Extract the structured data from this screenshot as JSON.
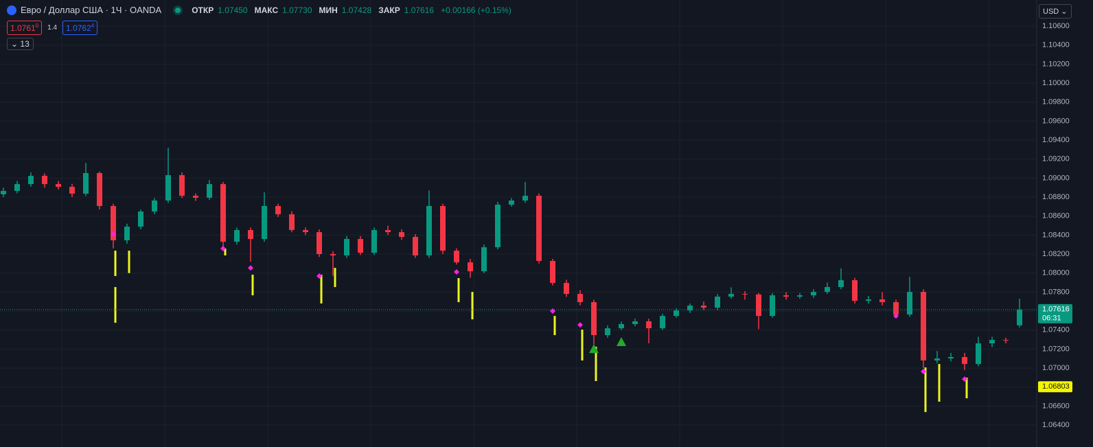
{
  "header": {
    "symbol": "Евро / Доллар США · 1Ч · OANDA",
    "open_label": "ОТКР",
    "open": "1.07450",
    "high_label": "МАКС",
    "high": "1.07730",
    "low_label": "МИН",
    "low": "1.07428",
    "close_label": "ЗАКР",
    "close": "1.07616",
    "change": "+0.00166 (+0.15%)",
    "sell": "1.0761",
    "sell_sup": "0",
    "spread": "1.4",
    "buy": "1.0762",
    "buy_sup": "4",
    "indicators": "13",
    "currency": "USD"
  },
  "chart_data": {
    "type": "candlestick",
    "open": [
      1.0883,
      1.08865,
      1.08937,
      1.09024,
      1.08937,
      1.08908,
      1.08836,
      1.09053,
      1.08706,
      1.08345,
      1.08489,
      1.08648,
      1.08764,
      1.09031,
      1.08814,
      1.08793,
      1.08937,
      1.0833,
      1.08453,
      1.08359,
      1.08706,
      1.08619,
      1.08453,
      1.08431,
      1.082,
      1.08186,
      1.08359,
      1.08214,
      1.08453,
      1.08431,
      1.08381,
      1.08186,
      1.08706,
      1.08236,
      1.08113,
      1.08019,
      1.08272,
      1.0872,
      1.08764,
      1.08814,
      1.08128,
      1.07896,
      1.07781,
      1.07694,
      1.07347,
      1.07419,
      1.07463,
      1.07492,
      1.07419,
      1.07549,
      1.07607,
      1.07658,
      1.07636,
      1.07752,
      1.07781,
      1.07775,
      1.07549,
      1.07766,
      1.07752,
      1.07766,
      1.07802,
      1.07853,
      1.07925,
      1.07708,
      1.07723,
      1.07694,
      1.07564,
      1.07802,
      1.0708,
      1.07101,
      1.07116,
      1.07043,
      1.0726,
      1.07296,
      1.0745
    ],
    "high": [
      1.089,
      1.0897,
      1.0906,
      1.0905,
      1.0897,
      1.0894,
      1.0916,
      1.0907,
      1.0873,
      1.0852,
      1.0867,
      1.0879,
      1.0932,
      1.0906,
      1.0884,
      1.0898,
      1.0896,
      1.0848,
      1.0848,
      1.0885,
      1.0873,
      1.0865,
      1.0848,
      1.0846,
      1.0823,
      1.0839,
      1.0839,
      1.0848,
      1.085,
      1.0846,
      1.0841,
      1.0887,
      1.0873,
      1.0826,
      1.0815,
      1.083,
      1.0875,
      1.0879,
      1.0896,
      1.0884,
      1.0815,
      1.0793,
      1.0782,
      1.0772,
      1.0745,
      1.0749,
      1.0752,
      1.0752,
      1.0757,
      1.0763,
      1.0768,
      1.077,
      1.0778,
      1.0785,
      1.0781,
      1.0779,
      1.0779,
      1.078,
      1.0779,
      1.0783,
      1.079,
      1.0805,
      1.0795,
      1.0776,
      1.078,
      1.0772,
      1.0796,
      1.0783,
      1.0718,
      1.0716,
      1.0716,
      1.0733,
      1.0733,
      1.0732,
      1.0773
    ],
    "low": [
      1.088,
      1.0884,
      1.0891,
      1.089,
      1.0888,
      1.088,
      1.0881,
      1.0867,
      1.0826,
      1.0831,
      1.0846,
      1.0862,
      1.0874,
      1.0879,
      1.0876,
      1.0877,
      1.0828,
      1.083,
      1.0812,
      1.0833,
      1.0859,
      1.0843,
      1.084,
      1.0817,
      1.0797,
      1.0816,
      1.0819,
      1.0819,
      1.084,
      1.0835,
      1.0816,
      1.0816,
      1.082,
      1.0809,
      1.0795,
      1.08,
      1.0825,
      1.087,
      1.0874,
      1.081,
      1.0787,
      1.0775,
      1.0766,
      1.0725,
      1.0732,
      1.074,
      1.0744,
      1.0726,
      1.074,
      1.0753,
      1.0758,
      1.0761,
      1.0761,
      1.0773,
      1.0772,
      1.0741,
      1.0753,
      1.0772,
      1.0773,
      1.0774,
      1.0778,
      1.0783,
      1.0768,
      1.0768,
      1.0766,
      1.0754,
      1.0754,
      1.07,
      1.0705,
      1.0707,
      1.0698,
      1.0702,
      1.0722,
      1.0726,
      1.07428
    ],
    "close": [
      1.08865,
      1.08937,
      1.09024,
      1.08937,
      1.08908,
      1.08836,
      1.09053,
      1.08706,
      1.08345,
      1.08489,
      1.08648,
      1.08764,
      1.09031,
      1.08814,
      1.08793,
      1.08937,
      1.0833,
      1.08453,
      1.08359,
      1.08706,
      1.08619,
      1.08453,
      1.08431,
      1.082,
      1.08186,
      1.08359,
      1.08214,
      1.08453,
      1.08431,
      1.08381,
      1.08186,
      1.08706,
      1.08236,
      1.08113,
      1.08019,
      1.08272,
      1.0872,
      1.08764,
      1.08814,
      1.08128,
      1.07896,
      1.07781,
      1.07694,
      1.07347,
      1.07419,
      1.07463,
      1.07492,
      1.07419,
      1.07549,
      1.07607,
      1.07658,
      1.07636,
      1.07752,
      1.07781,
      1.07775,
      1.07549,
      1.07766,
      1.07752,
      1.07766,
      1.07802,
      1.07853,
      1.07925,
      1.07708,
      1.07723,
      1.07694,
      1.07564,
      1.07802,
      1.0708,
      1.07101,
      1.07116,
      1.07043,
      1.0726,
      1.07296,
      1.07289,
      1.07616
    ],
    "up_color": "#089981",
    "down_color": "#f23645",
    "diamonds": {
      "color": "#ff1fe6",
      "index": [
        8,
        16,
        18,
        23,
        33,
        40,
        42,
        65,
        67,
        70
      ],
      "values": [
        1.0841,
        1.08258,
        1.08055,
        1.07969,
        1.08012,
        1.076,
        1.07455,
        1.07549,
        1.06964,
        1.06884
      ]
    },
    "bars": {
      "color": "#eaf51d",
      "index": [
        8,
        8,
        9,
        16,
        18,
        23,
        24,
        33,
        34,
        40,
        42,
        43,
        67,
        68,
        70
      ],
      "top": [
        1.08236,
        1.07853,
        1.08236,
        1.08258,
        1.07983,
        1.07983,
        1.08055,
        1.07947,
        1.07802,
        1.07549,
        1.07405,
        1.07224,
        1.07007,
        1.07043,
        1.06899
      ],
      "bottom": [
        1.07969,
        1.07477,
        1.08,
        1.08186,
        1.07766,
        1.0768,
        1.07853,
        1.07694,
        1.07513,
        1.07347,
        1.0708,
        1.06863,
        1.06537,
        1.06646,
        1.06682
      ]
    },
    "triangles": {
      "color": "#22ab2b",
      "index": [
        43,
        45
      ],
      "values": [
        1.07202,
        1.07275
      ]
    },
    "last_price": 1.07616,
    "countdown": "06:31",
    "level": 1.06803,
    "ylim": [
      1.06169,
      1.10875
    ],
    "yticks": [
      {
        "value": 1.064,
        "label": "1.06400"
      },
      {
        "value": 1.066,
        "label": "1.06600"
      },
      {
        "value": 1.068,
        "label": "1.06800"
      },
      {
        "value": 1.07,
        "label": "1.07000"
      },
      {
        "value": 1.072,
        "label": "1.07200"
      },
      {
        "value": 1.074,
        "label": "1.07400"
      },
      {
        "value": 1.076,
        "label": "1.07600"
      },
      {
        "value": 1.078,
        "label": "1.07800"
      },
      {
        "value": 1.08,
        "label": "1.08000"
      },
      {
        "value": 1.082,
        "label": "1.08200"
      },
      {
        "value": 1.084,
        "label": "1.08400"
      },
      {
        "value": 1.086,
        "label": "1.08600"
      },
      {
        "value": 1.088,
        "label": "1.08800"
      },
      {
        "value": 1.09,
        "label": "1.09000"
      },
      {
        "value": 1.092,
        "label": "1.09200"
      },
      {
        "value": 1.094,
        "label": "1.09400"
      },
      {
        "value": 1.096,
        "label": "1.09600"
      },
      {
        "value": 1.098,
        "label": "1.09800"
      },
      {
        "value": 1.1,
        "label": "1.10000"
      },
      {
        "value": 1.102,
        "label": "1.10200"
      },
      {
        "value": 1.104,
        "label": "1.10400"
      },
      {
        "value": 1.106,
        "label": "1.10600"
      }
    ],
    "grid": true
  }
}
